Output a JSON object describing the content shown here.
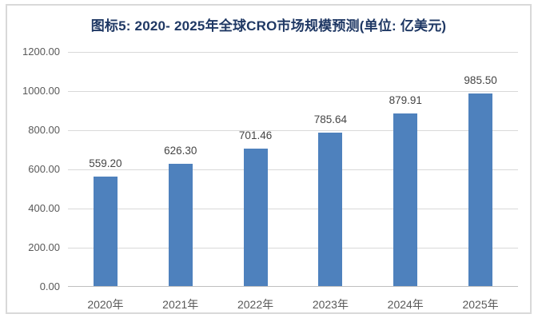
{
  "chart_data": {
    "type": "bar",
    "title": "图标5: 2020- 2025年全球CRO市场规模预测(单位: 亿美元)",
    "categories": [
      "2020年",
      "2021年",
      "2022年",
      "2023年",
      "2024年",
      "2025年"
    ],
    "values": [
      559.2,
      626.3,
      701.46,
      785.64,
      879.91,
      985.5
    ],
    "value_labels": [
      "559.20",
      "626.30",
      "701.46",
      "785.64",
      "879.91",
      "985.50"
    ],
    "unit": "亿美元",
    "xlabel": "",
    "ylabel": "",
    "ylim": [
      0,
      1200
    ],
    "yticks": [
      0,
      200,
      400,
      600,
      800,
      1000,
      1200
    ],
    "ytick_labels": [
      "0.00",
      "200.00",
      "400.00",
      "600.00",
      "800.00",
      "1000.00",
      "1200.00"
    ],
    "grid": true,
    "legend": false,
    "colors": {
      "bar": "#4e81bd",
      "title": "#1f3864",
      "axis_label": "#595959",
      "value_label": "#444444",
      "gridline": "#d9d9d9",
      "axis_line": "#bfbfbf",
      "frame_border": "#d9d9d9",
      "background": "#ffffff"
    }
  }
}
